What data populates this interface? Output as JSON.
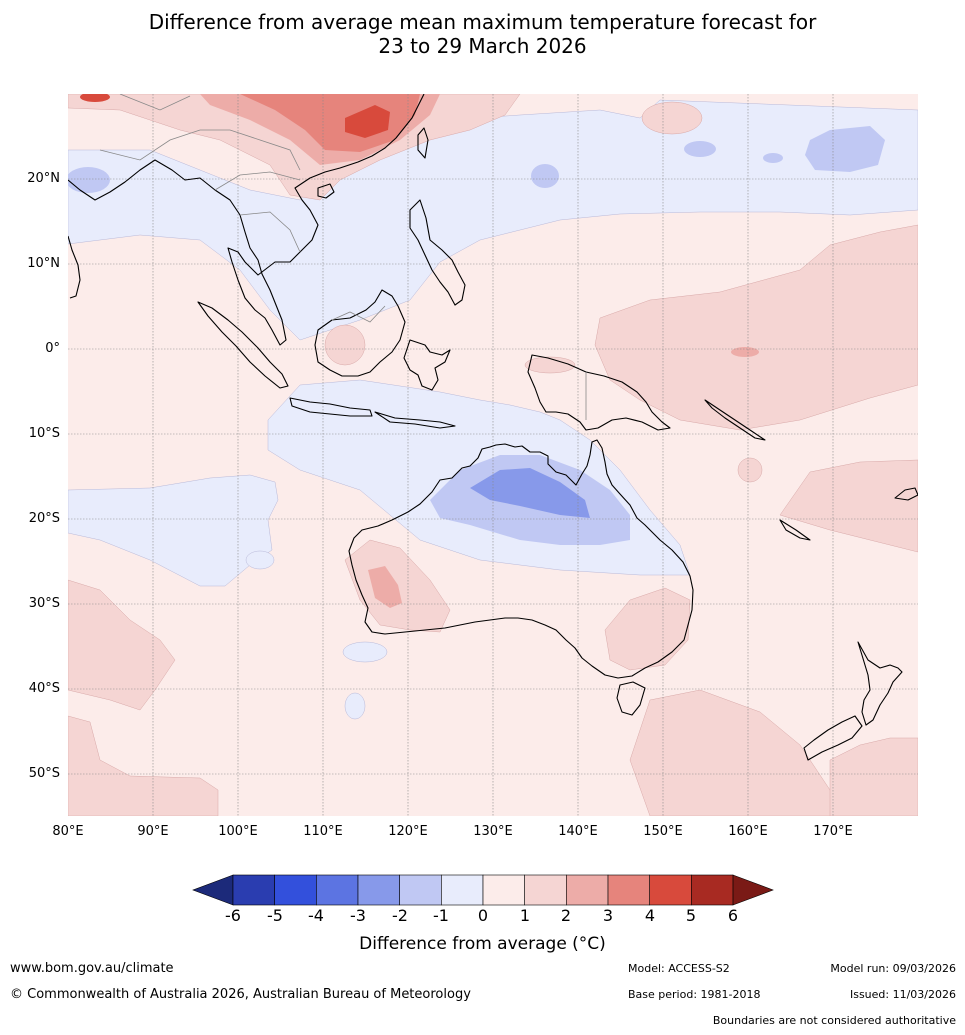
{
  "title": {
    "line1": "Difference from average mean maximum temperature forecast for",
    "line2": "23 to 29 March 2026"
  },
  "map": {
    "region": "Indo-Pacific and Australia",
    "lon_range": [
      80,
      180
    ],
    "lat_range": [
      -55,
      30
    ],
    "lat_labels": [
      "20°N",
      "10°N",
      "0°",
      "10°S",
      "20°S",
      "30°S",
      "40°S",
      "50°S"
    ],
    "lon_labels": [
      "80°E",
      "90°E",
      "100°E",
      "110°E",
      "120°E",
      "130°E",
      "140°E",
      "150°E",
      "160°E",
      "170°E"
    ]
  },
  "colorbar": {
    "ticks": [
      "-6",
      "-5",
      "-4",
      "-3",
      "-2",
      "-1",
      "0",
      "1",
      "2",
      "3",
      "4",
      "5",
      "6"
    ],
    "colors": [
      "#1c2a7a",
      "#2a3db0",
      "#3350dc",
      "#5c74e2",
      "#8799ea",
      "#c0c8f3",
      "#e8ecfc",
      "#fcecea",
      "#f5d5d3",
      "#edaca8",
      "#e6847c",
      "#d84a3c",
      "#a82a22",
      "#7a1a16"
    ],
    "label": "Difference from average (°C)"
  },
  "footer": {
    "website": "www.bom.gov.au/climate",
    "copyright": "© Commonwealth of Australia 2026, Australian Bureau of Meteorology",
    "model": "Model: ACCESS-S2",
    "base_period": "Base period: 1981-2018",
    "model_run": "Model run: 09/03/2026",
    "issued": "Issued: 11/03/2026",
    "disclaimer": "Boundaries are not considered authoritative"
  }
}
